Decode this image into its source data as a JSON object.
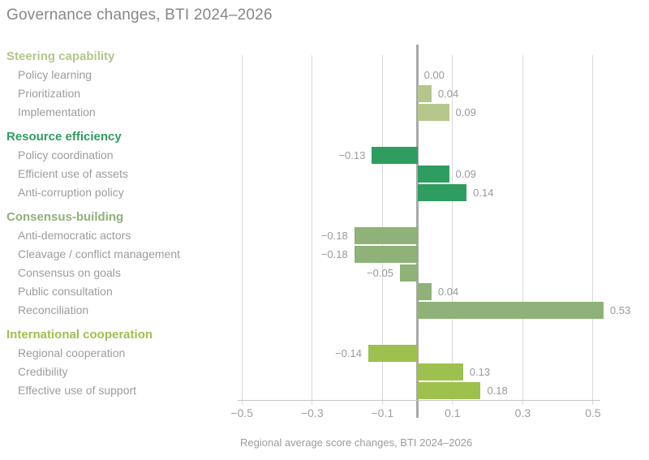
{
  "title": "Governance changes, BTI 2024–2026",
  "chart_data": {
    "type": "bar",
    "orientation": "horizontal",
    "xlabel": "Regional average score changes, BTI 2024–2026",
    "xlim": [
      -0.5,
      0.5
    ],
    "x_ticks": [
      -0.5,
      -0.3,
      -0.1,
      0.1,
      0.3,
      0.5
    ],
    "tick_labels": [
      "−0.5",
      "−0.3",
      "−0.1",
      "0.1",
      "0.3",
      "0.5"
    ],
    "grid": true,
    "groups": [
      {
        "label": "Steering capability",
        "color": "#b4c689",
        "items": [
          {
            "label": "Policy learning",
            "value": 0.0,
            "display": "0.00"
          },
          {
            "label": "Prioritization",
            "value": 0.04,
            "display": "0.04"
          },
          {
            "label": "Implementation",
            "value": 0.09,
            "display": "0.09"
          }
        ]
      },
      {
        "label": "Resource efficiency",
        "color": "#2f9d5f",
        "items": [
          {
            "label": "Policy coordination",
            "value": -0.13,
            "display": "−0.13"
          },
          {
            "label": "Efficient use of assets",
            "value": 0.09,
            "display": "0.09"
          },
          {
            "label": "Anti-corruption policy",
            "value": 0.14,
            "display": "0.14"
          }
        ]
      },
      {
        "label": "Consensus-building",
        "color": "#8eb277",
        "items": [
          {
            "label": "Anti-democratic actors",
            "value": -0.18,
            "display": "−0.18"
          },
          {
            "label": "Cleavage / conflict management",
            "value": -0.18,
            "display": "−0.18"
          },
          {
            "label": "Consensus on goals",
            "value": -0.05,
            "display": "−0.05"
          },
          {
            "label": "Public consultation",
            "value": 0.04,
            "display": "0.04"
          },
          {
            "label": "Reconciliation",
            "value": 0.53,
            "display": "0.53"
          }
        ]
      },
      {
        "label": "International cooperation",
        "color": "#9ec04e",
        "items": [
          {
            "label": "Regional cooperation",
            "value": -0.14,
            "display": "−0.14"
          },
          {
            "label": "Credibility",
            "value": 0.13,
            "display": "0.13"
          },
          {
            "label": "Effective use of support",
            "value": 0.18,
            "display": "0.18"
          }
        ]
      }
    ]
  },
  "colors": {
    "title_text": "#878787",
    "item_text": "#9c9c9c",
    "value_text": "#999999",
    "tick_text": "#9f9f9f",
    "gridline": "#d9d9d9",
    "zero_line": "#a9a9a9",
    "axis_line": "#c6c6c6"
  }
}
